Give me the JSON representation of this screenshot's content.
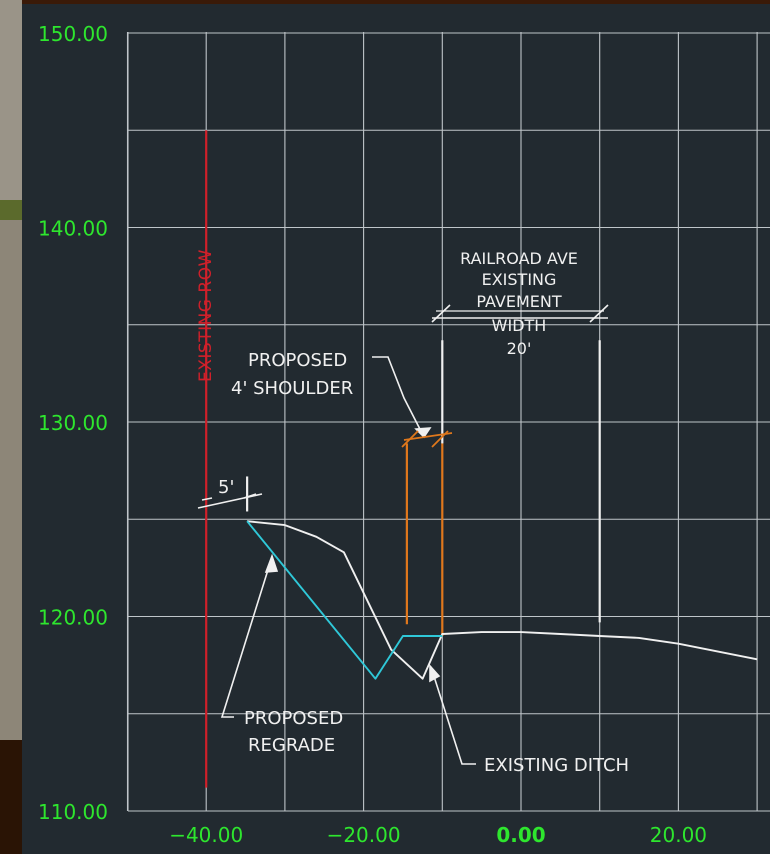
{
  "chart_data": {
    "type": "line",
    "title": "",
    "xlabel": "",
    "ylabel": "",
    "xlim": [
      -40,
      30
    ],
    "ylim": [
      110,
      150
    ],
    "x_ticks": [
      -40,
      -20,
      0,
      20
    ],
    "x_tick_labels": [
      "−40.00",
      "−20.00",
      "0.00",
      "20.00"
    ],
    "y_ticks": [
      110,
      120,
      130,
      140,
      150
    ],
    "y_tick_labels": [
      "110.00",
      "120.00",
      "130.00",
      "140.00",
      "150.00"
    ],
    "grid": true,
    "series": [
      {
        "color": "#f0f0f0",
        "points": [
          [
            -34.8,
            124.9
          ],
          [
            -30,
            124.7
          ],
          [
            -26,
            124.1
          ],
          [
            -22.5,
            123.3
          ],
          [
            -16.5,
            118.3
          ],
          [
            -12.5,
            116.8
          ],
          [
            -10,
            119.1
          ],
          [
            -5,
            119.2
          ],
          [
            0,
            119.2
          ],
          [
            5,
            119.1
          ],
          [
            10,
            119.0
          ],
          [
            15,
            118.9
          ],
          [
            20,
            118.6
          ],
          [
            30,
            117.8
          ]
        ]
      },
      {
        "color": "#2fc8d8",
        "points": [
          [
            -34.8,
            124.9
          ],
          [
            -18.5,
            116.8
          ],
          [
            -15,
            119.0
          ],
          [
            -10,
            119.0
          ]
        ]
      }
    ],
    "vertical_lines": [
      {
        "x": -40,
        "y_from": 111.2,
        "y_to": 145,
        "color": "#d0202a"
      },
      {
        "x": -14.5,
        "y_from": 119.6,
        "y_to": 128.9,
        "color": "#e0781c"
      },
      {
        "x": -10,
        "y_from": 119.0,
        "y_to": 128.9,
        "color": "#e0781c"
      },
      {
        "x": -10,
        "y_from": 128.9,
        "y_to": 134.2,
        "color": "#f0f0f0"
      },
      {
        "x": 10,
        "y_from": 119.7,
        "y_to": 134.2,
        "color": "#f0f0f0"
      },
      {
        "x": -34.8,
        "y_from": 125.4,
        "y_to": 127.2,
        "color": "#f0f0f0"
      }
    ],
    "annotations": [
      {
        "lines": [
          "EXISTING ROW"
        ],
        "color": "#d0202a"
      },
      {
        "lines": [
          "RAILROAD AVE",
          "EXISTING",
          "PAVEMENT",
          "WIDTH",
          "20'"
        ],
        "color": "#f0f0f0"
      },
      {
        "lines": [
          "PROPOSED",
          "4' SHOULDER"
        ],
        "color": "#f0f0f0"
      },
      {
        "lines": [
          "5'"
        ],
        "color": "#f0f0f0"
      },
      {
        "lines": [
          "PROPOSED",
          "REGRADE"
        ],
        "color": "#f0f0f0"
      },
      {
        "lines": [
          "EXISTING DITCH"
        ],
        "color": "#f0f0f0"
      }
    ]
  },
  "colors": {
    "background": "#222a30",
    "grid": "#bfc5c9",
    "tick_label": "#2ee62e",
    "frame": "#3a1a08"
  }
}
